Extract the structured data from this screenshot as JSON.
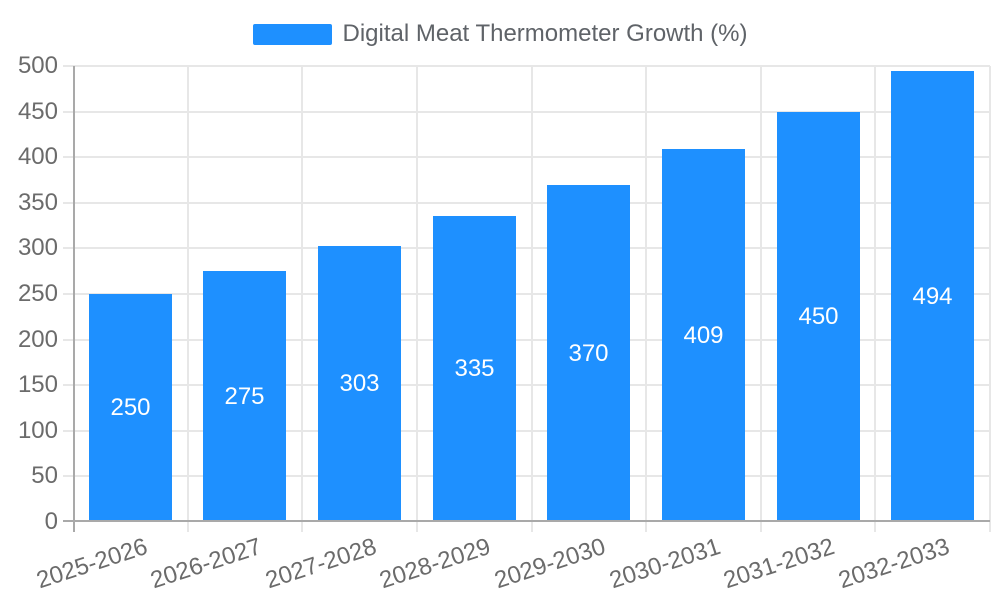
{
  "chart_data": {
    "type": "bar",
    "title": "",
    "legend": "Digital Meat Thermometer Growth (%)",
    "legend_position": "top",
    "categories": [
      "2025-2026",
      "2026-2027",
      "2027-2028",
      "2028-2029",
      "2029-2030",
      "2030-2031",
      "2031-2032",
      "2032-2033"
    ],
    "values": [
      250,
      275,
      303,
      335,
      370,
      409,
      450,
      494
    ],
    "data_labels": [
      "250",
      "275",
      "303",
      "335",
      "370",
      "409",
      "450",
      "494"
    ],
    "xlabel": "",
    "ylabel": "",
    "ylim": [
      0,
      500
    ],
    "yticks": [
      0,
      50,
      100,
      150,
      200,
      250,
      300,
      350,
      400,
      450,
      500
    ],
    "grid": true,
    "x_label_rotation_deg": -18,
    "colors": {
      "bar": "#1E90FF",
      "data_label": "#FFFFFF",
      "axis_line": "#A9A9A9",
      "gridline": "#E7E7E7",
      "axis_label": "#6B6B6B",
      "legend_text": "#5F6368",
      "background": "#FFFFFF"
    }
  }
}
